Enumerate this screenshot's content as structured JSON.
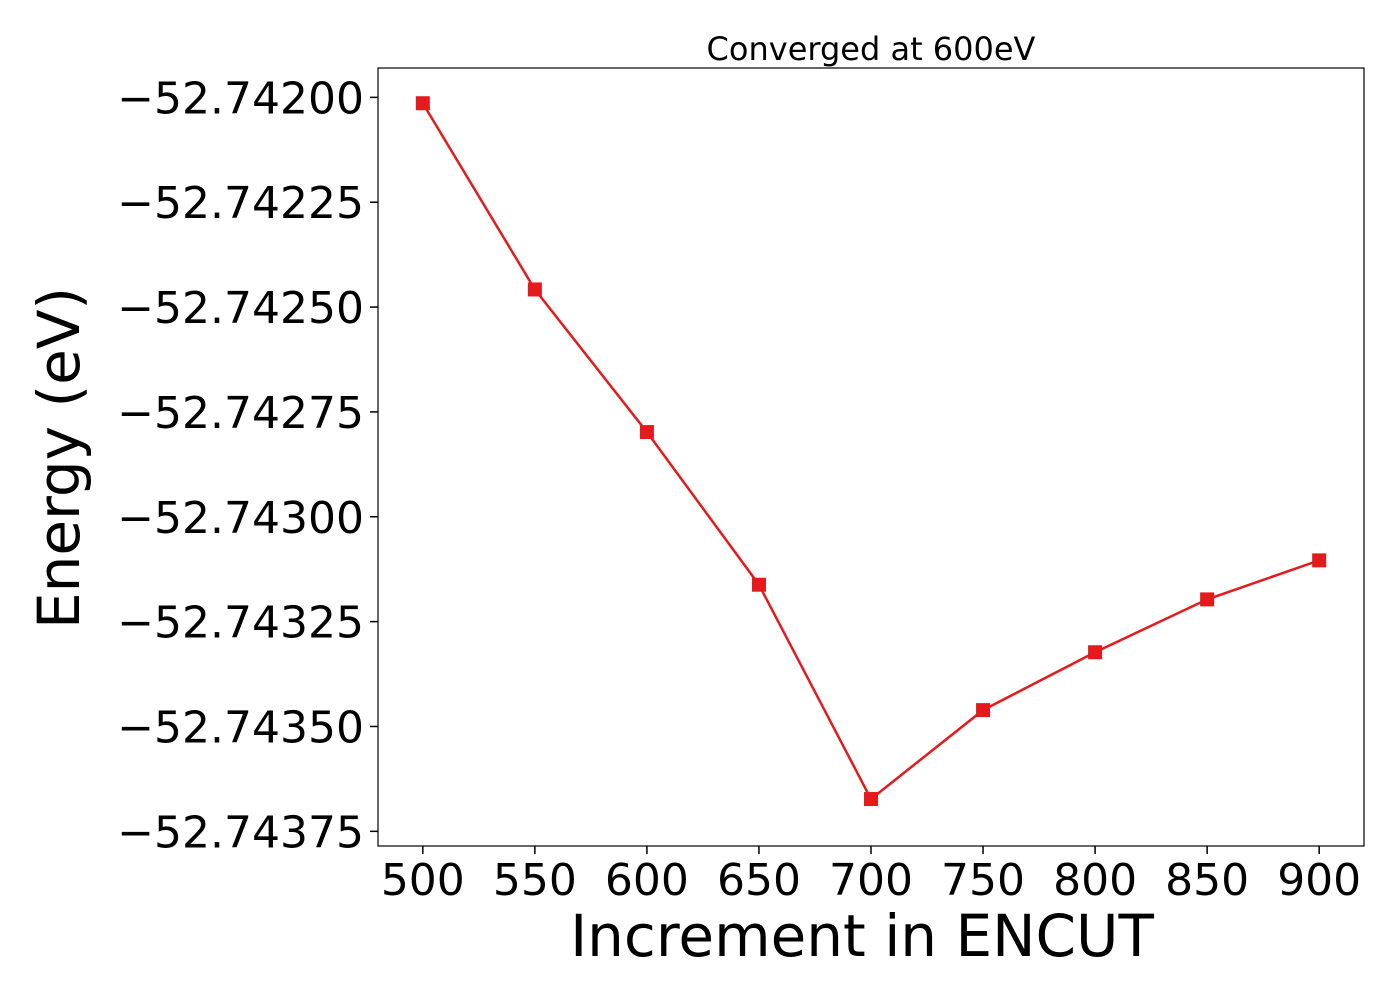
{
  "chart_data": {
    "type": "line",
    "title": "Converged at 600eV",
    "xlabel": "Increment in ENCUT",
    "ylabel": "Energy (eV)",
    "x": [
      500,
      550,
      600,
      650,
      700,
      750,
      800,
      850,
      900
    ],
    "series": [
      {
        "values": [
          -52.742014,
          -52.742458,
          -52.742798,
          -52.743162,
          -52.743673,
          -52.743461,
          -52.743323,
          -52.743197,
          -52.743104
        ],
        "color": "#e41a1c",
        "marker": "square"
      }
    ],
    "xlim": [
      480,
      920
    ],
    "ylim": [
      -52.743785,
      -52.74193
    ],
    "xticks": [
      500,
      550,
      600,
      650,
      700,
      750,
      800,
      850,
      900
    ],
    "xtick_labels": [
      "500",
      "550",
      "600",
      "650",
      "700",
      "750",
      "800",
      "850",
      "900"
    ],
    "yticks": [
      -52.742,
      -52.74225,
      -52.7425,
      -52.74275,
      -52.743,
      -52.74325,
      -52.7435,
      -52.74375
    ],
    "ytick_labels": [
      "−52.74200",
      "−52.74225",
      "−52.74250",
      "−52.74275",
      "−52.74300",
      "−52.74325",
      "−52.74350",
      "−52.74375"
    ],
    "grid": false,
    "legend": "none"
  }
}
